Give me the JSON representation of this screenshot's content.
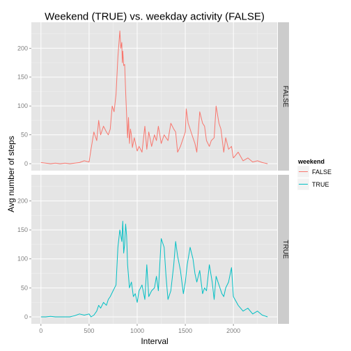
{
  "chart_data": {
    "type": "line",
    "title": "Weekend (TRUE) vs. weekday activity (FALSE)",
    "xlabel": "Interval",
    "ylabel": "Avg number of steps",
    "xlim": [
      -100,
      2455
    ],
    "ylim": [
      -12,
      245
    ],
    "x_ticks": [
      0,
      500,
      1000,
      1500,
      2000
    ],
    "x_tick_labels": [
      "0",
      "500",
      "1000",
      "1500",
      "2000"
    ],
    "y_ticks": [
      0,
      50,
      100,
      150,
      200
    ],
    "y_tick_labels": [
      "0",
      "50",
      "100",
      "150",
      "200"
    ],
    "legend": {
      "title": "weekend",
      "position": "right",
      "entries": [
        {
          "label": "FALSE",
          "color": "#F8766D"
        },
        {
          "label": "TRUE",
          "color": "#00BFC4"
        }
      ]
    },
    "panels": [
      {
        "strip": "FALSE",
        "color": "#F8766D",
        "x": [
          0,
          50,
          100,
          150,
          200,
          250,
          300,
          350,
          400,
          450,
          500,
          520,
          550,
          580,
          600,
          620,
          650,
          680,
          700,
          720,
          740,
          760,
          780,
          800,
          820,
          830,
          840,
          845,
          850,
          860,
          870,
          880,
          900,
          910,
          920,
          930,
          940,
          950,
          970,
          990,
          1000,
          1020,
          1050,
          1080,
          1100,
          1120,
          1150,
          1180,
          1200,
          1220,
          1250,
          1280,
          1300,
          1320,
          1350,
          1380,
          1400,
          1420,
          1450,
          1480,
          1500,
          1510,
          1530,
          1550,
          1560,
          1580,
          1600,
          1620,
          1650,
          1680,
          1700,
          1720,
          1750,
          1770,
          1800,
          1820,
          1850,
          1870,
          1900,
          1920,
          1950,
          1980,
          2000,
          2050,
          2100,
          2150,
          2200,
          2250,
          2300,
          2355
        ],
        "y": [
          2,
          1,
          0,
          1,
          0,
          1,
          0,
          1,
          2,
          5,
          3,
          25,
          55,
          40,
          75,
          50,
          65,
          55,
          50,
          60,
          100,
          90,
          120,
          185,
          230,
          200,
          210,
          175,
          195,
          170,
          172,
          125,
          45,
          80,
          35,
          60,
          50,
          28,
          45,
          30,
          22,
          30,
          20,
          65,
          25,
          55,
          30,
          50,
          40,
          65,
          35,
          50,
          45,
          40,
          70,
          60,
          55,
          20,
          30,
          45,
          55,
          95,
          70,
          60,
          55,
          45,
          35,
          20,
          90,
          70,
          65,
          40,
          30,
          40,
          45,
          100,
          70,
          60,
          20,
          45,
          25,
          30,
          10,
          20,
          5,
          10,
          3,
          5,
          2,
          0
        ]
      },
      {
        "strip": "TRUE",
        "color": "#00BFC4",
        "x": [
          0,
          50,
          100,
          150,
          200,
          250,
          300,
          350,
          400,
          450,
          500,
          520,
          550,
          580,
          600,
          620,
          650,
          680,
          700,
          720,
          750,
          780,
          800,
          820,
          840,
          850,
          860,
          870,
          880,
          890,
          900,
          920,
          940,
          960,
          980,
          1000,
          1020,
          1050,
          1080,
          1100,
          1120,
          1150,
          1180,
          1200,
          1220,
          1250,
          1280,
          1300,
          1320,
          1350,
          1380,
          1400,
          1420,
          1450,
          1480,
          1500,
          1520,
          1550,
          1580,
          1600,
          1620,
          1650,
          1680,
          1700,
          1720,
          1750,
          1780,
          1800,
          1820,
          1850,
          1880,
          1900,
          1920,
          1950,
          1980,
          2000,
          2050,
          2100,
          2150,
          2200,
          2250,
          2300,
          2355
        ],
        "y": [
          0,
          0,
          1,
          0,
          0,
          0,
          0,
          2,
          5,
          3,
          5,
          0,
          3,
          10,
          20,
          15,
          25,
          20,
          30,
          35,
          45,
          55,
          120,
          150,
          130,
          165,
          110,
          125,
          160,
          140,
          90,
          50,
          60,
          35,
          40,
          25,
          45,
          55,
          30,
          90,
          35,
          45,
          50,
          70,
          45,
          135,
          120,
          70,
          30,
          45,
          90,
          130,
          105,
          80,
          40,
          60,
          90,
          120,
          100,
          75,
          60,
          80,
          40,
          50,
          45,
          90,
          60,
          30,
          70,
          55,
          40,
          35,
          50,
          60,
          85,
          35,
          20,
          10,
          15,
          5,
          10,
          3,
          0
        ]
      }
    ]
  }
}
